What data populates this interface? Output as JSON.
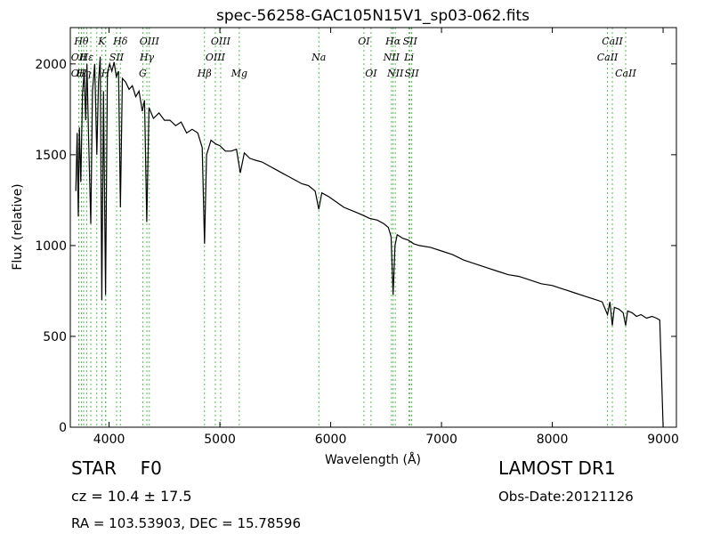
{
  "chart_data": {
    "type": "line",
    "title": "spec-56258-GAC105N15V1_sp03-062.fits",
    "xlabel": "Wavelength (Å)",
    "ylabel": "Flux (relative)",
    "xlim": [
      3650,
      9120
    ],
    "ylim": [
      0,
      2200
    ],
    "xticks": [
      4000,
      5000,
      6000,
      7000,
      8000,
      9000
    ],
    "yticks": [
      0,
      500,
      1000,
      1500,
      2000
    ],
    "grid": false,
    "series": [
      {
        "points": [
          [
            3700,
            1300
          ],
          [
            3712,
            1620
          ],
          [
            3722,
            1160
          ],
          [
            3732,
            1650
          ],
          [
            3745,
            1350
          ],
          [
            3760,
            1840
          ],
          [
            3775,
            1950
          ],
          [
            3789,
            1690
          ],
          [
            3800,
            2000
          ],
          [
            3815,
            1600
          ],
          [
            3835,
            1120
          ],
          [
            3850,
            1850
          ],
          [
            3870,
            2000
          ],
          [
            3889,
            1500
          ],
          [
            3905,
            1900
          ],
          [
            3920,
            2040
          ],
          [
            3934,
            700
          ],
          [
            3950,
            1850
          ],
          [
            3968,
            730
          ],
          [
            3985,
            1950
          ],
          [
            4005,
            2000
          ],
          [
            4025,
            1960
          ],
          [
            4045,
            2010
          ],
          [
            4065,
            1930
          ],
          [
            4085,
            1960
          ],
          [
            4102,
            1210
          ],
          [
            4120,
            1920
          ],
          [
            4150,
            1900
          ],
          [
            4180,
            1860
          ],
          [
            4210,
            1880
          ],
          [
            4240,
            1820
          ],
          [
            4270,
            1850
          ],
          [
            4300,
            1740
          ],
          [
            4320,
            1800
          ],
          [
            4340,
            1130
          ],
          [
            4360,
            1760
          ],
          [
            4400,
            1700
          ],
          [
            4450,
            1730
          ],
          [
            4500,
            1690
          ],
          [
            4550,
            1690
          ],
          [
            4600,
            1660
          ],
          [
            4650,
            1680
          ],
          [
            4700,
            1620
          ],
          [
            4750,
            1640
          ],
          [
            4800,
            1620
          ],
          [
            4840,
            1540
          ],
          [
            4861,
            1010
          ],
          [
            4880,
            1500
          ],
          [
            4920,
            1580
          ],
          [
            4960,
            1560
          ],
          [
            5000,
            1550
          ],
          [
            5050,
            1520
          ],
          [
            5100,
            1520
          ],
          [
            5150,
            1530
          ],
          [
            5184,
            1400
          ],
          [
            5220,
            1510
          ],
          [
            5270,
            1480
          ],
          [
            5320,
            1470
          ],
          [
            5380,
            1460
          ],
          [
            5440,
            1440
          ],
          [
            5500,
            1420
          ],
          [
            5560,
            1400
          ],
          [
            5620,
            1380
          ],
          [
            5680,
            1360
          ],
          [
            5740,
            1340
          ],
          [
            5800,
            1330
          ],
          [
            5860,
            1300
          ],
          [
            5893,
            1200
          ],
          [
            5920,
            1290
          ],
          [
            5980,
            1270
          ],
          [
            6050,
            1240
          ],
          [
            6120,
            1210
          ],
          [
            6200,
            1190
          ],
          [
            6280,
            1170
          ],
          [
            6350,
            1150
          ],
          [
            6420,
            1140
          ],
          [
            6480,
            1120
          ],
          [
            6520,
            1100
          ],
          [
            6545,
            1050
          ],
          [
            6563,
            730
          ],
          [
            6580,
            1000
          ],
          [
            6600,
            1060
          ],
          [
            6650,
            1040
          ],
          [
            6700,
            1030
          ],
          [
            6750,
            1010
          ],
          [
            6800,
            1000
          ],
          [
            6900,
            990
          ],
          [
            7000,
            970
          ],
          [
            7100,
            950
          ],
          [
            7200,
            920
          ],
          [
            7300,
            900
          ],
          [
            7400,
            880
          ],
          [
            7500,
            860
          ],
          [
            7600,
            840
          ],
          [
            7700,
            830
          ],
          [
            7800,
            810
          ],
          [
            7900,
            790
          ],
          [
            8000,
            780
          ],
          [
            8100,
            760
          ],
          [
            8200,
            740
          ],
          [
            8300,
            720
          ],
          [
            8400,
            700
          ],
          [
            8450,
            690
          ],
          [
            8498,
            620
          ],
          [
            8520,
            690
          ],
          [
            8542,
            560
          ],
          [
            8560,
            660
          ],
          [
            8600,
            650
          ],
          [
            8640,
            630
          ],
          [
            8662,
            560
          ],
          [
            8680,
            640
          ],
          [
            8720,
            630
          ],
          [
            8760,
            610
          ],
          [
            8800,
            620
          ],
          [
            8850,
            600
          ],
          [
            8900,
            610
          ],
          [
            8940,
            600
          ],
          [
            8970,
            590
          ],
          [
            8985,
            300
          ],
          [
            9000,
            0
          ]
        ]
      }
    ],
    "line_markers": [
      {
        "wave": 3727,
        "label": "OII",
        "row": "u2"
      },
      {
        "wave": 3727,
        "label": "OII",
        "row": "u3"
      },
      {
        "wave": 3750,
        "label": "Hθ",
        "row": "u1"
      },
      {
        "wave": 3770,
        "label": "Hη",
        "row": "u3"
      },
      {
        "wave": 3798,
        "label": "Hε",
        "row": "u2"
      },
      {
        "wave": 3835,
        "label": "",
        "row": "u2"
      },
      {
        "wave": 3889,
        "label": "",
        "row": "u1"
      },
      {
        "wave": 3934,
        "label": "K",
        "row": "u1"
      },
      {
        "wave": 3968,
        "label": "H",
        "row": "u3"
      },
      {
        "wave": 3970,
        "label": "",
        "row": "u2"
      },
      {
        "wave": 4068,
        "label": "SII",
        "row": "u2"
      },
      {
        "wave": 4102,
        "label": "Hδ",
        "row": "u1"
      },
      {
        "wave": 4304,
        "label": "G",
        "row": "u3"
      },
      {
        "wave": 4341,
        "label": "Hγ",
        "row": "u2"
      },
      {
        "wave": 4363,
        "label": "OIII",
        "row": "u1"
      },
      {
        "wave": 4861,
        "label": "Hβ",
        "row": "u3"
      },
      {
        "wave": 4959,
        "label": "OIII",
        "row": "u2"
      },
      {
        "wave": 5007,
        "label": "OIII",
        "row": "u1"
      },
      {
        "wave": 5175,
        "label": "Mg",
        "row": "u3"
      },
      {
        "wave": 5893,
        "label": "Na",
        "row": "u2"
      },
      {
        "wave": 6300,
        "label": "OI",
        "row": "u1"
      },
      {
        "wave": 6364,
        "label": "OI",
        "row": "u3"
      },
      {
        "wave": 6548,
        "label": "NII",
        "row": "u2"
      },
      {
        "wave": 6563,
        "label": "Hα",
        "row": "u1"
      },
      {
        "wave": 6583,
        "label": "NII",
        "row": "u3"
      },
      {
        "wave": 6707,
        "label": "Li",
        "row": "u2"
      },
      {
        "wave": 6716,
        "label": "SII",
        "row": "u1"
      },
      {
        "wave": 6731,
        "label": "SII",
        "row": "u3"
      },
      {
        "wave": 8498,
        "label": "CaII",
        "row": "u2"
      },
      {
        "wave": 8542,
        "label": "CaII",
        "row": "u1"
      },
      {
        "wave": 8662,
        "label": "CaII",
        "row": "u3"
      }
    ],
    "colors": {
      "spectrum": "#000000",
      "line_markers": "#55bb55",
      "frame": "#000000"
    }
  },
  "info": {
    "object_class": "STAR",
    "subclass": "F0",
    "redshift": "cz = 10.4 ± 17.5",
    "coords": "RA = 103.53903, DEC = 15.78596",
    "survey": "LAMOST DR1",
    "obs_date": "Obs-Date:20121126"
  }
}
